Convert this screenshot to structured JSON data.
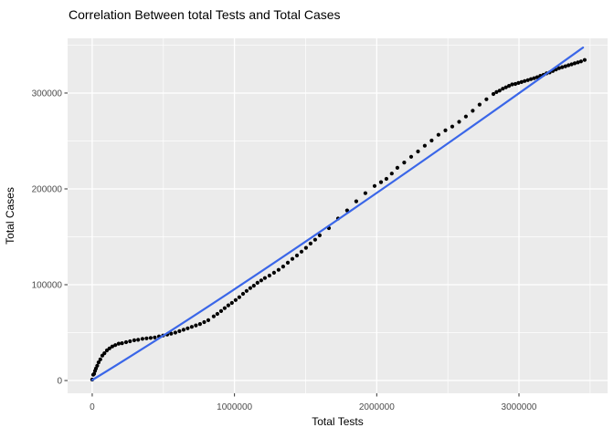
{
  "chart_data": {
    "type": "scatter",
    "title": "Correlation Between total Tests and Total Cases",
    "xlabel": "Total Tests",
    "ylabel": "Total Cases",
    "x_ticks": [
      0,
      1000000,
      2000000,
      3000000
    ],
    "x_tick_labels": [
      "0",
      "1000000",
      "2000000",
      "3000000"
    ],
    "x_minor_ticks": [
      500000,
      1500000,
      2500000,
      3500000
    ],
    "y_ticks": [
      0,
      100000,
      200000,
      300000
    ],
    "y_tick_labels": [
      "0",
      "100000",
      "200000",
      "300000"
    ],
    "y_minor_ticks": [
      50000,
      150000,
      250000,
      350000
    ],
    "xlim": [
      -173000,
      3623000
    ],
    "ylim": [
      -13300,
      357100
    ],
    "grid": true,
    "legend": "none",
    "panel_bg": "#EBEBEB",
    "grid_color": "#FFFFFF",
    "tick_color": "#333333",
    "tick_label_color": "#4D4D4D",
    "text_color": "#000000",
    "point_color": "#000000",
    "trend_color": "#3A66E8",
    "trend_line": {
      "start": [
        0,
        500
      ],
      "mid": [
        1500000,
        145000
      ],
      "end": [
        3450000,
        347500
      ]
    },
    "points": [
      [
        0,
        1000
      ],
      [
        7000,
        6000
      ],
      [
        13000,
        7000
      ],
      [
        20000,
        10000
      ],
      [
        26000,
        12500
      ],
      [
        35000,
        15500
      ],
      [
        45000,
        19000
      ],
      [
        57000,
        22000
      ],
      [
        71000,
        26000
      ],
      [
        86000,
        28500
      ],
      [
        103000,
        31500
      ],
      [
        121000,
        33500
      ],
      [
        141000,
        35500
      ],
      [
        162000,
        37000
      ],
      [
        186000,
        38500
      ],
      [
        210000,
        39000
      ],
      [
        238000,
        40000
      ],
      [
        266000,
        41000
      ],
      [
        295000,
        42000
      ],
      [
        323000,
        42500
      ],
      [
        353000,
        43500
      ],
      [
        382000,
        44000
      ],
      [
        411000,
        44500
      ],
      [
        440000,
        45000
      ],
      [
        469000,
        46000
      ],
      [
        498000,
        47000
      ],
      [
        527000,
        48000
      ],
      [
        555000,
        49000
      ],
      [
        584000,
        50000
      ],
      [
        613000,
        51500
      ],
      [
        642000,
        53000
      ],
      [
        671000,
        54500
      ],
      [
        700000,
        56000
      ],
      [
        729000,
        57500
      ],
      [
        758000,
        59000
      ],
      [
        787000,
        61000
      ],
      [
        816000,
        63000
      ],
      [
        854000,
        67000
      ],
      [
        880000,
        69500
      ],
      [
        906000,
        72500
      ],
      [
        931000,
        75500
      ],
      [
        957000,
        78500
      ],
      [
        982000,
        81000
      ],
      [
        1008000,
        84000
      ],
      [
        1034000,
        87000
      ],
      [
        1060000,
        90500
      ],
      [
        1085000,
        93500
      ],
      [
        1111000,
        96500
      ],
      [
        1136000,
        99000
      ],
      [
        1162000,
        102000
      ],
      [
        1188000,
        104500
      ],
      [
        1214000,
        107000
      ],
      [
        1246000,
        109500
      ],
      [
        1278000,
        112500
      ],
      [
        1310000,
        115500
      ],
      [
        1342000,
        119000
      ],
      [
        1375000,
        123000
      ],
      [
        1407000,
        127000
      ],
      [
        1439000,
        130500
      ],
      [
        1471000,
        134500
      ],
      [
        1503000,
        138500
      ],
      [
        1535000,
        143000
      ],
      [
        1567000,
        147000
      ],
      [
        1599000,
        151500
      ],
      [
        1664000,
        159000
      ],
      [
        1728000,
        169000
      ],
      [
        1792000,
        177500
      ],
      [
        1856000,
        187000
      ],
      [
        1920000,
        195500
      ],
      [
        1985000,
        203000
      ],
      [
        2030000,
        207000
      ],
      [
        2068000,
        210500
      ],
      [
        2106000,
        216000
      ],
      [
        2145000,
        222000
      ],
      [
        2193000,
        227500
      ],
      [
        2242000,
        233500
      ],
      [
        2290000,
        239000
      ],
      [
        2338000,
        245000
      ],
      [
        2386000,
        250500
      ],
      [
        2434000,
        256500
      ],
      [
        2483000,
        261000
      ],
      [
        2531000,
        265000
      ],
      [
        2579000,
        270000
      ],
      [
        2627000,
        275500
      ],
      [
        2675000,
        281500
      ],
      [
        2723000,
        288000
      ],
      [
        2771000,
        293500
      ],
      [
        2820000,
        299000
      ],
      [
        2842000,
        301000
      ],
      [
        2864000,
        302500
      ],
      [
        2886000,
        304500
      ],
      [
        2908000,
        306000
      ],
      [
        2930000,
        307500
      ],
      [
        2952000,
        309000
      ],
      [
        2974000,
        309500
      ],
      [
        2996000,
        310500
      ],
      [
        3018000,
        311500
      ],
      [
        3040000,
        312500
      ],
      [
        3062000,
        313500
      ],
      [
        3084000,
        314500
      ],
      [
        3106000,
        315500
      ],
      [
        3128000,
        316500
      ],
      [
        3150000,
        318000
      ],
      [
        3172000,
        319000
      ],
      [
        3194000,
        320500
      ],
      [
        3216000,
        321500
      ],
      [
        3238000,
        323000
      ],
      [
        3260000,
        324500
      ],
      [
        3282000,
        326000
      ],
      [
        3304000,
        327000
      ],
      [
        3326000,
        328000
      ],
      [
        3348000,
        329000
      ],
      [
        3370000,
        330000
      ],
      [
        3392000,
        331000
      ],
      [
        3414000,
        332000
      ],
      [
        3436000,
        333000
      ],
      [
        3462000,
        334500
      ]
    ]
  }
}
